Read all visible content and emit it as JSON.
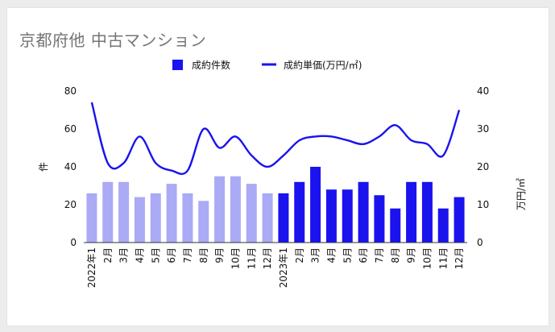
{
  "chart_data": {
    "type": "bar",
    "title": "京都府他 中古マンション",
    "categories": [
      "2022年1",
      "2月",
      "3月",
      "4月",
      "5月",
      "6月",
      "7月",
      "8月",
      "9月",
      "10月",
      "11月",
      "12月",
      "2023年1",
      "2月",
      "3月",
      "4月",
      "5月",
      "6月",
      "7月",
      "8月",
      "9月",
      "10月",
      "11月",
      "12月"
    ],
    "series": [
      {
        "name": "成約件数",
        "type": "bar",
        "axis": "left",
        "values": [
          26,
          32,
          32,
          24,
          26,
          31,
          26,
          22,
          35,
          35,
          31,
          26,
          26,
          32,
          40,
          28,
          28,
          32,
          25,
          18,
          32,
          32,
          18,
          24
        ]
      },
      {
        "name": "成約単価(万円/㎡)",
        "type": "line",
        "axis": "right",
        "values": [
          37,
          21,
          21,
          28,
          21,
          19,
          19,
          30,
          25,
          28,
          23,
          20,
          23,
          27,
          28,
          28,
          27,
          26,
          28,
          31,
          27,
          26,
          23,
          35
        ]
      }
    ],
    "ylabel": "件",
    "y2label": "万円/㎡",
    "ylim": [
      0,
      80
    ],
    "y2lim": [
      0,
      40
    ],
    "yticks": [
      0,
      20,
      40,
      60,
      80
    ],
    "y2ticks": [
      0,
      10,
      20,
      30,
      40
    ],
    "legend_position": "top",
    "grid": false,
    "colors": {
      "bar_2022": "#aaaaf5",
      "bar_2023": "#1a13ee",
      "line": "#1a13ee",
      "title": "#757575"
    }
  }
}
